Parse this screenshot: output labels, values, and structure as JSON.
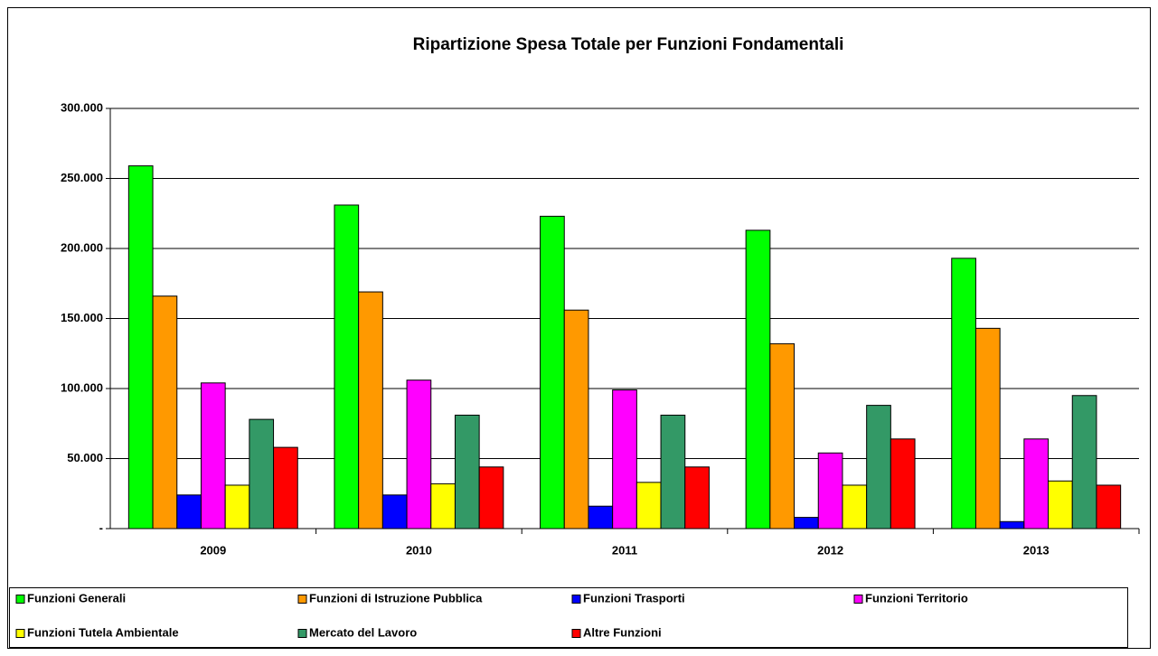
{
  "chart_data": {
    "type": "bar",
    "title": "Ripartizione Spesa Totale per Funzioni Fondamentali",
    "categories": [
      "2009",
      "2010",
      "2011",
      "2012",
      "2013"
    ],
    "series": [
      {
        "name": "Funzioni Generali",
        "color": "#00ff00",
        "values": [
          259000,
          231000,
          223000,
          213000,
          193000
        ]
      },
      {
        "name": "Funzioni di Istruzione Pubblica",
        "color": "#ff9900",
        "values": [
          166000,
          169000,
          156000,
          132000,
          143000
        ]
      },
      {
        "name": "Funzioni Trasporti",
        "color": "#0000ff",
        "values": [
          24000,
          24000,
          16000,
          8000,
          5000
        ]
      },
      {
        "name": "Funzioni Territorio",
        "color": "#ff00ff",
        "values": [
          104000,
          106000,
          99000,
          54000,
          64000
        ]
      },
      {
        "name": "Funzioni Tutela Ambientale",
        "color": "#ffff00",
        "values": [
          31000,
          32000,
          33000,
          31000,
          34000
        ]
      },
      {
        "name": "Mercato del Lavoro",
        "color": "#339966",
        "values": [
          78000,
          81000,
          81000,
          88000,
          95000
        ]
      },
      {
        "name": "Altre Funzioni",
        "color": "#ff0000",
        "values": [
          58000,
          44000,
          44000,
          64000,
          31000
        ]
      }
    ],
    "ylim": [
      0,
      300000
    ],
    "yticks": [
      {
        "value": 0,
        "label": "-"
      },
      {
        "value": 50000,
        "label": "50.000"
      },
      {
        "value": 100000,
        "label": "100.000"
      },
      {
        "value": 150000,
        "label": "150.000"
      },
      {
        "value": 200000,
        "label": "200.000"
      },
      {
        "value": 250000,
        "label": "250.000"
      },
      {
        "value": 300000,
        "label": "300.000"
      }
    ],
    "grid": true,
    "legend": "bottom"
  }
}
